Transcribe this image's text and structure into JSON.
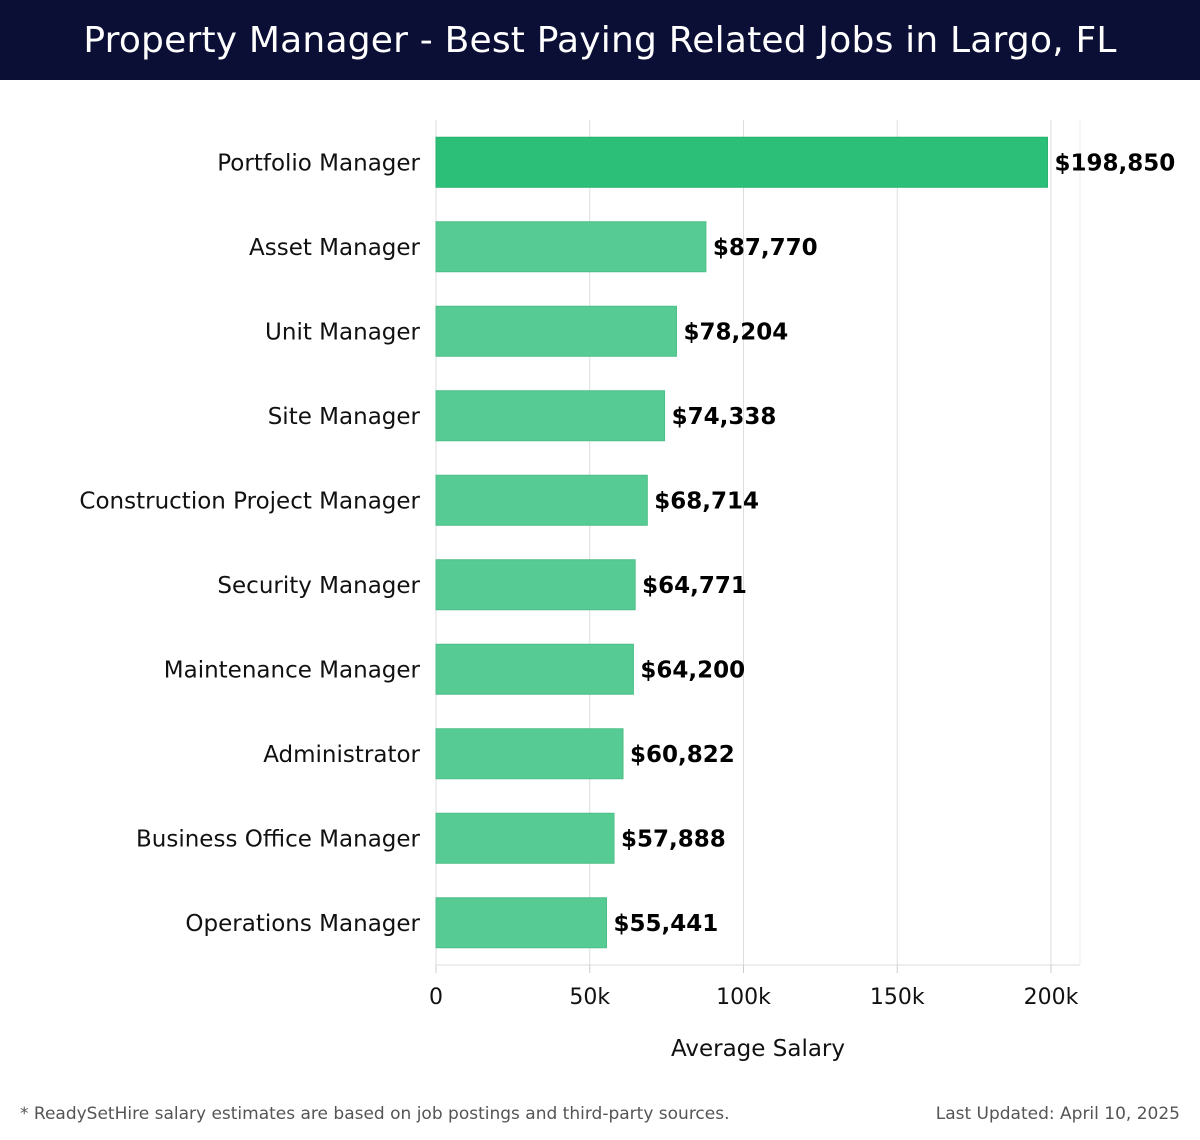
{
  "header": {
    "title": "Property Manager - Best Paying Related Jobs in Largo, FL"
  },
  "footer": {
    "note": "* ReadySetHire salary estimates are based on job postings and third-party sources.",
    "updated": "Last Updated: April 10, 2025"
  },
  "chart_data": {
    "type": "bar",
    "orientation": "horizontal",
    "categories": [
      "Portfolio Manager",
      "Asset Manager",
      "Unit Manager",
      "Site Manager",
      "Construction Project Manager",
      "Security Manager",
      "Maintenance Manager",
      "Administrator",
      "Business Office Manager",
      "Operations Manager"
    ],
    "values": [
      198850,
      87770,
      78204,
      74338,
      68714,
      64771,
      64200,
      60822,
      57888,
      55441
    ],
    "value_labels": [
      "$198,850",
      "$87,770",
      "$78,204",
      "$74,338",
      "$68,714",
      "$64,771",
      "$64,200",
      "$60,822",
      "$57,888",
      "$55,441"
    ],
    "xlabel": "Average Salary",
    "ylabel": "",
    "xlim": [
      0,
      210000
    ],
    "xticks": [
      0,
      50000,
      100000,
      150000,
      200000
    ],
    "xtick_labels": [
      "0",
      "50k",
      "100k",
      "150k",
      "200k"
    ],
    "grid": true,
    "colors": {
      "highlight": "#2bbf78",
      "bar": "#56cb93",
      "grid": "#dddddd"
    }
  }
}
